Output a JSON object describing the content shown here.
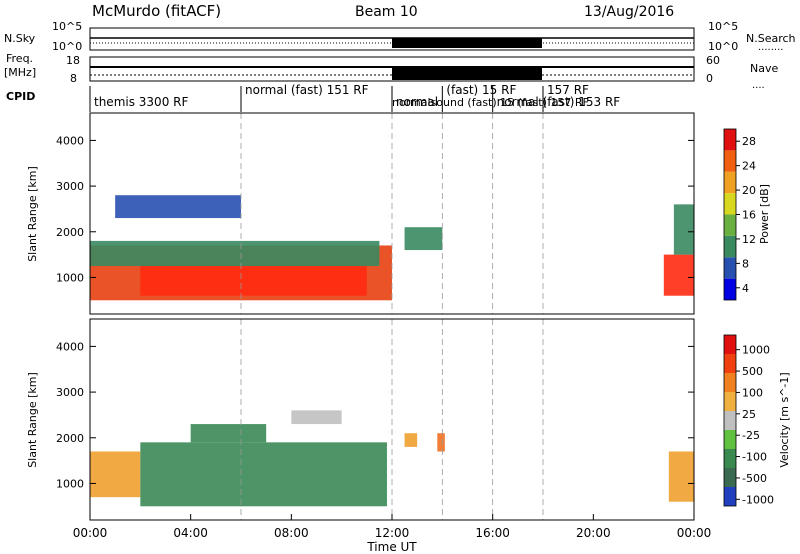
{
  "header": {
    "station": "McMurdo (fitACF)",
    "beam": "Beam 10",
    "date": "13/Aug/2016"
  },
  "noise_panel": {
    "left_label": "N.Sky",
    "right_label": "N.Search",
    "left_ticks": [
      "10^5",
      "10^0"
    ],
    "right_ticks": [
      "10^5",
      "10^0"
    ]
  },
  "freq_panel": {
    "left_label_1": "Freq.",
    "left_label_2": "[MHz]",
    "right_label": "Nave",
    "left_ticks": [
      "18",
      "8"
    ],
    "right_ticks": [
      "60",
      "0"
    ]
  },
  "cpid": {
    "label": "CPID",
    "segments": [
      {
        "start_h": 0.0,
        "text": "themis 3300 RF"
      },
      {
        "start_h": 6.0,
        "text": "normal (fast) 151 RF"
      },
      {
        "start_h": 12.0,
        "text": "normal"
      },
      {
        "start_h": 14.0,
        "text": "(fast) 15 RF"
      },
      {
        "start_h": 16.0,
        "text": "normal (fast) 153 RF"
      },
      {
        "start_h": 18.0,
        "text": "157 RF"
      }
    ],
    "overlap_text": "normalsound (fast) 15 (fast) 157 RF"
  },
  "chart_data": [
    {
      "type": "heatmap",
      "title": "Power",
      "xlabel": "",
      "ylabel": "Slant Range [km]",
      "xlim": [
        0,
        24
      ],
      "ylim": [
        200,
        4600
      ],
      "yticks": [
        1000,
        2000,
        3000,
        4000
      ],
      "colorbar": {
        "label": "Power [dB]",
        "ticks": [
          "28",
          "24",
          "20",
          "16",
          "12",
          "8",
          "4"
        ],
        "colors": [
          "#0000e0",
          "#2850b0",
          "#3a8a60",
          "#6ab040",
          "#d8d820",
          "#f0a020",
          "#f06010",
          "#e01010"
        ]
      },
      "bands": [
        {
          "x": [
            0.0,
            12.0
          ],
          "y": [
            500,
            1700
          ],
          "color": "#e84010"
        },
        {
          "x": [
            2.0,
            11.0
          ],
          "y": [
            600,
            1250
          ],
          "color": "#ff2a10"
        },
        {
          "x": [
            0.0,
            11.5
          ],
          "y": [
            1250,
            1800
          ],
          "color": "#3a8a60"
        },
        {
          "x": [
            1.0,
            6.0
          ],
          "y": [
            2300,
            2800
          ],
          "color": "#2850b0"
        },
        {
          "x": [
            12.5,
            14.0
          ],
          "y": [
            1600,
            2100
          ],
          "color": "#3a8a60"
        },
        {
          "x": [
            22.8,
            24.0
          ],
          "y": [
            600,
            1500
          ],
          "color": "#ff2a10"
        },
        {
          "x": [
            23.2,
            24.0
          ],
          "y": [
            1500,
            2600
          ],
          "color": "#3a8a60"
        }
      ]
    },
    {
      "type": "heatmap",
      "title": "Velocity",
      "xlabel": "Time UT",
      "ylabel": "Slant Range [km]",
      "xlim": [
        0,
        24
      ],
      "ylim": [
        200,
        4600
      ],
      "xticks": [
        "00:00",
        "04:00",
        "08:00",
        "12:00",
        "16:00",
        "20:00",
        "00:00"
      ],
      "yticks": [
        1000,
        2000,
        3000,
        4000
      ],
      "colorbar": {
        "label": "Velocity [m s^-1]",
        "ticks": [
          "1000",
          "500",
          "100",
          "25",
          "-25",
          "-100",
          "-500",
          "-1000"
        ],
        "colors": [
          "#2040c0",
          "#3a6a50",
          "#3a8a50",
          "#60c040",
          "#c0c0c0",
          "#f0b040",
          "#f08020",
          "#f04010",
          "#e01010"
        ]
      },
      "bands": [
        {
          "x": [
            0.0,
            2.0
          ],
          "y": [
            700,
            1700
          ],
          "color": "#f0a030"
        },
        {
          "x": [
            2.0,
            11.8
          ],
          "y": [
            500,
            1900
          ],
          "color": "#3a8a55"
        },
        {
          "x": [
            4.0,
            7.0
          ],
          "y": [
            1900,
            2300
          ],
          "color": "#3a8a55"
        },
        {
          "x": [
            8.0,
            10.0
          ],
          "y": [
            2300,
            2600
          ],
          "color": "#c0c0c0"
        },
        {
          "x": [
            12.5,
            13.0
          ],
          "y": [
            1800,
            2100
          ],
          "color": "#f0a030"
        },
        {
          "x": [
            13.8,
            14.1
          ],
          "y": [
            1700,
            2100
          ],
          "color": "#f07020"
        },
        {
          "x": [
            23.0,
            24.0
          ],
          "y": [
            600,
            1700
          ],
          "color": "#f0a030"
        }
      ]
    }
  ]
}
